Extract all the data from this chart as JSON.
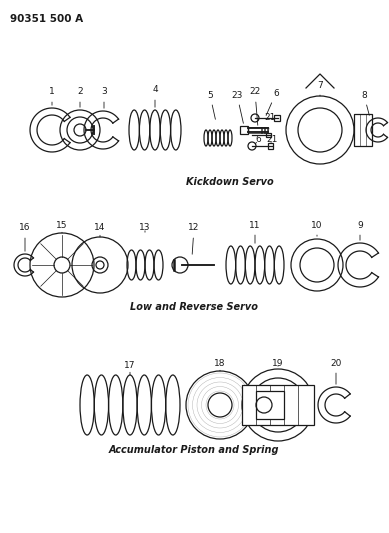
{
  "title_ref": "90351 500 A",
  "bg_color": "#ffffff",
  "line_color": "#1a1a1a",
  "section1_label": "Kickdown Servo",
  "section2_label": "Low and Reverse Servo",
  "section3_label": "Accumulator Piston and Spring",
  "fig_w": 3.89,
  "fig_h": 5.33,
  "dpi": 100
}
